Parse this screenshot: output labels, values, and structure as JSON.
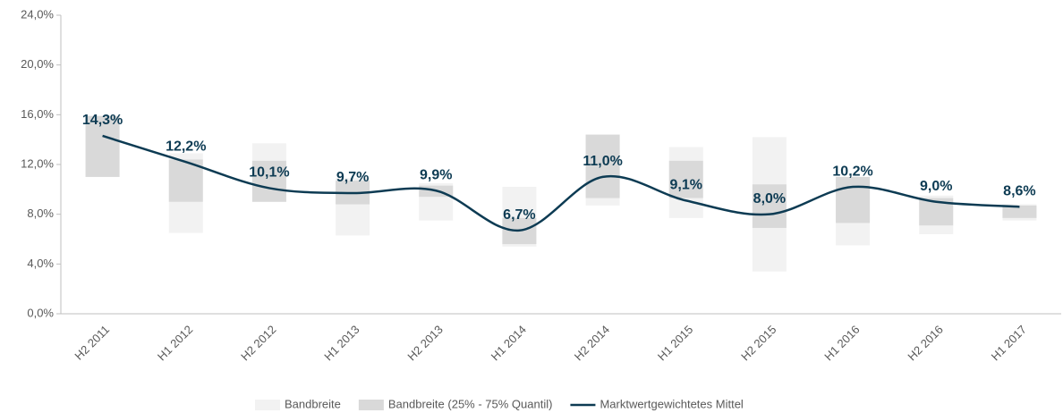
{
  "chart_data": {
    "type": "range-line",
    "categories": [
      "H2 2011",
      "H1 2012",
      "H2 2012",
      "H1 2013",
      "H2 2013",
      "H1 2014",
      "H2 2014",
      "H1 2015",
      "H2 2015",
      "H1 2016",
      "H2 2016",
      "H1 2017"
    ],
    "series": [
      {
        "name": "Bandbreite",
        "color": "#f2f2f2",
        "low": [
          11.0,
          6.5,
          9.0,
          6.3,
          7.5,
          5.4,
          8.7,
          7.7,
          3.4,
          5.5,
          6.4,
          7.5
        ],
        "high": [
          15.9,
          12.9,
          13.7,
          10.9,
          10.5,
          10.2,
          14.4,
          13.4,
          14.2,
          11.0,
          9.5,
          8.8
        ]
      },
      {
        "name": "Bandbreite (25% - 75% Quantil)",
        "color": "#d9d9d9",
        "low": [
          11.0,
          9.0,
          9.0,
          8.8,
          9.4,
          5.6,
          9.3,
          9.3,
          6.9,
          7.3,
          7.1,
          7.7
        ],
        "high": [
          15.9,
          12.4,
          12.3,
          10.7,
          10.3,
          7.7,
          14.4,
          12.3,
          10.4,
          11.0,
          9.3,
          8.7
        ]
      },
      {
        "name": "Marktwertgewichtetes Mittel",
        "color": "#0d3b53",
        "values": [
          14.3,
          12.2,
          10.1,
          9.7,
          9.9,
          6.7,
          11.0,
          9.1,
          8.0,
          10.2,
          9.0,
          8.6
        ],
        "value_labels": [
          "14,3%",
          "12,2%",
          "10,1%",
          "9,7%",
          "9,9%",
          "6,7%",
          "11,0%",
          "9,1%",
          "8,0%",
          "10,2%",
          "9,0%",
          "8,6%"
        ]
      }
    ],
    "ylim": [
      0,
      24
    ],
    "yticks": [
      {
        "value": 0,
        "label": "0,0%"
      },
      {
        "value": 4,
        "label": "4,0%"
      },
      {
        "value": 8,
        "label": "8,0%"
      },
      {
        "value": 12,
        "label": "12,0%"
      },
      {
        "value": 16,
        "label": "16,0%"
      },
      {
        "value": 20,
        "label": "20,0%"
      },
      {
        "value": 24,
        "label": "24,0%"
      }
    ],
    "legend": "bottom"
  }
}
